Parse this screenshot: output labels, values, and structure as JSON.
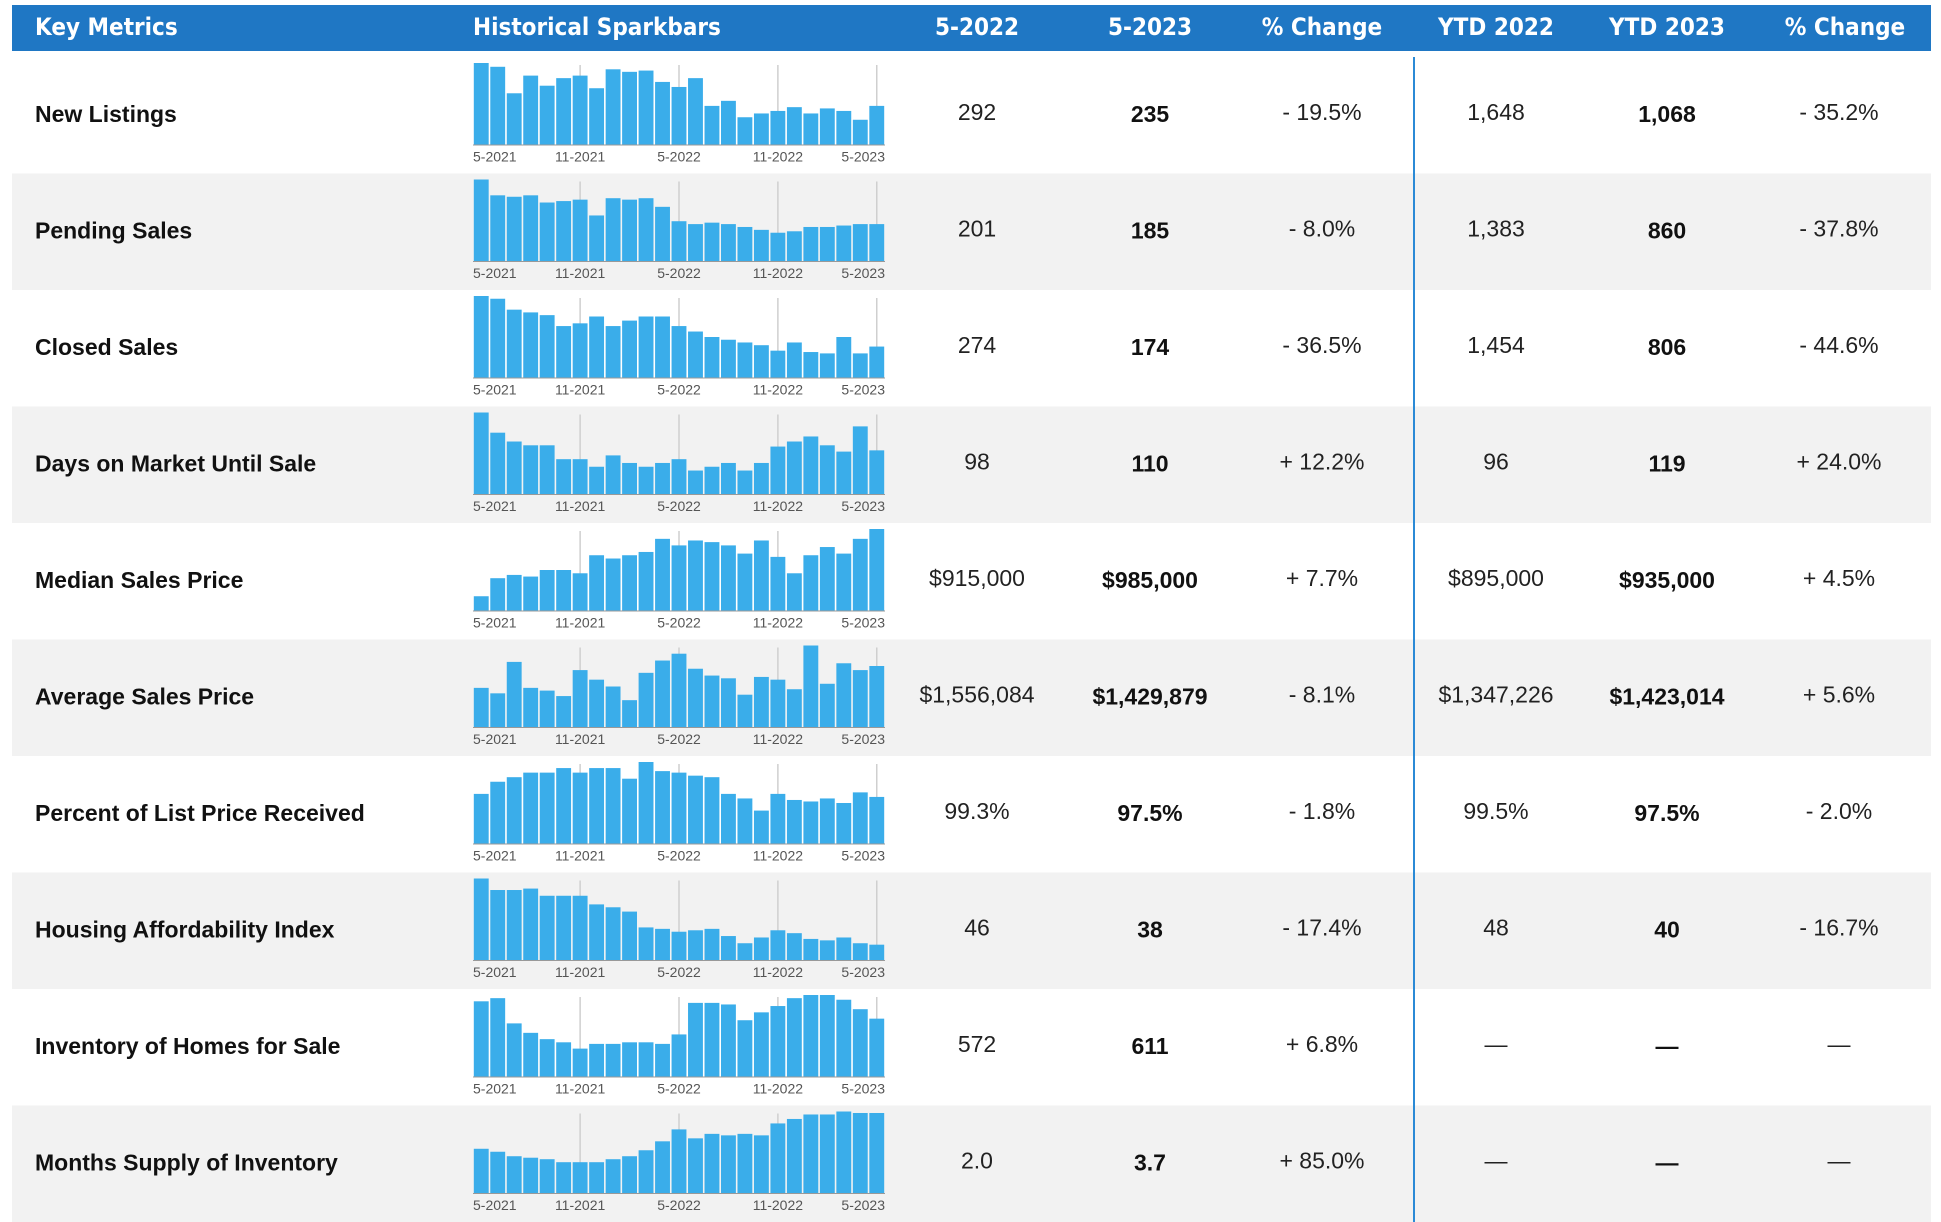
{
  "header": [
    "Key Metrics",
    "Historical Sparkbars",
    "5-2022",
    "5-2023",
    "% Change",
    "YTD 2022",
    "YTD 2023",
    "% Change"
  ],
  "spark_labels": [
    "5-2021",
    "11-2021",
    "5-2022",
    "11-2022",
    "5-2023"
  ],
  "rows": [
    {
      "label": "New Listings",
      "bars": [
        65,
        62,
        41,
        55,
        47,
        53,
        55,
        45,
        60,
        58,
        59,
        50,
        46,
        53,
        31,
        35,
        22,
        25,
        27,
        30,
        25,
        29,
        27,
        20,
        31
      ],
      "values": [
        "292",
        "235",
        "- 19.5%",
        "1,648",
        "1,068",
        "- 35.2%"
      ]
    },
    {
      "label": "Pending Sales",
      "bars": [
        57,
        46,
        45,
        46,
        41,
        42,
        43,
        32,
        44,
        43,
        44,
        38,
        28,
        26,
        27,
        26,
        24,
        22,
        20,
        21,
        24,
        24,
        25,
        26,
        26
      ],
      "values": [
        "201",
        "185",
        "- 8.0%",
        "1,383",
        "860",
        "- 37.8%"
      ]
    },
    {
      "label": "Closed Sales",
      "bars": [
        60,
        58,
        50,
        48,
        46,
        38,
        40,
        45,
        38,
        42,
        45,
        45,
        38,
        34,
        30,
        28,
        26,
        24,
        20,
        26,
        19,
        18,
        30,
        18,
        23
      ],
      "values": [
        "274",
        "174",
        "- 36.5%",
        "1,454",
        "806",
        "- 44.6%"
      ]
    },
    {
      "label": "Days on Market Until Sale",
      "bars": [
        65,
        49,
        42,
        39,
        39,
        28,
        28,
        22,
        31,
        25,
        22,
        25,
        28,
        19,
        22,
        25,
        19,
        25,
        38,
        42,
        46,
        39,
        34,
        54,
        35
      ],
      "values": [
        "98",
        "110",
        "+ 12.2%",
        "96",
        "119",
        "+ 24.0%"
      ]
    },
    {
      "label": "Median Sales Price",
      "bars": [
        9,
        20,
        22,
        21,
        25,
        25,
        23,
        34,
        32,
        34,
        36,
        44,
        40,
        43,
        42,
        40,
        35,
        43,
        33,
        23,
        34,
        39,
        35,
        44,
        50
      ],
      "values": [
        "$915,000",
        "$985,000",
        "+ 7.7%",
        "$895,000",
        "$935,000",
        "+ 4.5%"
      ]
    },
    {
      "label": "Average Sales Price",
      "bars": [
        29,
        25,
        48,
        29,
        27,
        23,
        42,
        35,
        30,
        20,
        40,
        49,
        54,
        43,
        38,
        36,
        24,
        37,
        35,
        28,
        60,
        32,
        47,
        42,
        45
      ],
      "values": [
        "$1,556,084",
        "$1,429,879",
        "- 8.1%",
        "$1,347,226",
        "$1,423,014",
        "+ 5.6%"
      ]
    },
    {
      "label": "Percent of List Price Received",
      "bars": [
        33,
        41,
        44,
        47,
        47,
        50,
        47,
        50,
        50,
        43,
        54,
        48,
        47,
        45,
        44,
        33,
        30,
        22,
        33,
        29,
        28,
        30,
        27,
        34,
        31
      ],
      "values": [
        "99.3%",
        "97.5%",
        "- 1.8%",
        "99.5%",
        "97.5%",
        "- 2.0%"
      ]
    },
    {
      "label": "Housing Affordability Index",
      "bars": [
        57,
        49,
        49,
        50,
        45,
        45,
        45,
        39,
        37,
        34,
        23,
        22,
        20,
        21,
        22,
        17,
        12,
        16,
        21,
        19,
        15,
        14,
        16,
        12,
        11
      ],
      "values": [
        "46",
        "38",
        "- 17.4%",
        "48",
        "40",
        "- 16.7%"
      ]
    },
    {
      "label": "Inventory of Homes for Sale",
      "bars": [
        48,
        50,
        34,
        28,
        24,
        22,
        18,
        21,
        21,
        22,
        22,
        21,
        27,
        47,
        47,
        46,
        36,
        41,
        45,
        50,
        52,
        52,
        49,
        43,
        37
      ],
      "values": [
        "572",
        "611",
        "+ 6.8%",
        "—",
        "—",
        "—"
      ]
    },
    {
      "label": "Months Supply of Inventory",
      "bars": [
        30,
        28,
        25,
        24,
        23,
        21,
        21,
        21,
        23,
        25,
        29,
        35,
        43,
        37,
        40,
        39,
        40,
        39,
        47,
        50,
        53,
        53,
        55,
        54,
        54
      ],
      "values": [
        "2.0",
        "3.7",
        "+ 85.0%",
        "—",
        "—",
        "—"
      ]
    }
  ]
}
